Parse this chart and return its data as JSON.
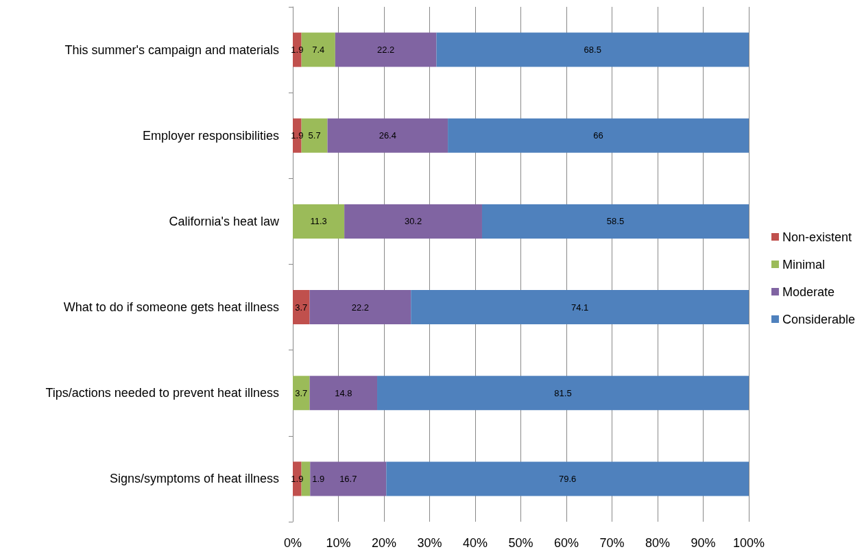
{
  "chart_data": {
    "type": "bar",
    "orientation": "horizontal",
    "stacked": true,
    "categories": [
      "This summer's campaign and materials",
      "Employer responsibilities",
      "California's heat law",
      "What to do if someone gets heat illness",
      "Tips/actions needed to prevent heat illness",
      "Signs/symptoms of heat illness"
    ],
    "series": [
      {
        "name": "Non-existent",
        "color": "#c0504d",
        "values": [
          1.9,
          1.9,
          null,
          3.7,
          null,
          1.9
        ]
      },
      {
        "name": "Minimal",
        "color": "#9bbb59",
        "values": [
          7.4,
          5.7,
          11.3,
          null,
          3.7,
          1.9
        ]
      },
      {
        "name": "Moderate",
        "color": "#8064a2",
        "values": [
          22.2,
          26.4,
          30.2,
          22.2,
          14.8,
          16.7
        ]
      },
      {
        "name": "Considerable",
        "color": "#4f81bd",
        "values": [
          68.5,
          66,
          58.5,
          74.1,
          81.5,
          79.6
        ]
      }
    ],
    "xlim": [
      0,
      100
    ],
    "xticks": [
      {
        "value": 0,
        "label": "0%"
      },
      {
        "value": 10,
        "label": "10%"
      },
      {
        "value": 20,
        "label": "20%"
      },
      {
        "value": 30,
        "label": "30%"
      },
      {
        "value": 40,
        "label": "40%"
      },
      {
        "value": 50,
        "label": "50%"
      },
      {
        "value": 60,
        "label": "60%"
      },
      {
        "value": 70,
        "label": "70%"
      },
      {
        "value": 80,
        "label": "80%"
      },
      {
        "value": 90,
        "label": "90%"
      },
      {
        "value": 100,
        "label": "100%"
      }
    ],
    "grid": "x",
    "legend": "right",
    "data_labels": true
  }
}
